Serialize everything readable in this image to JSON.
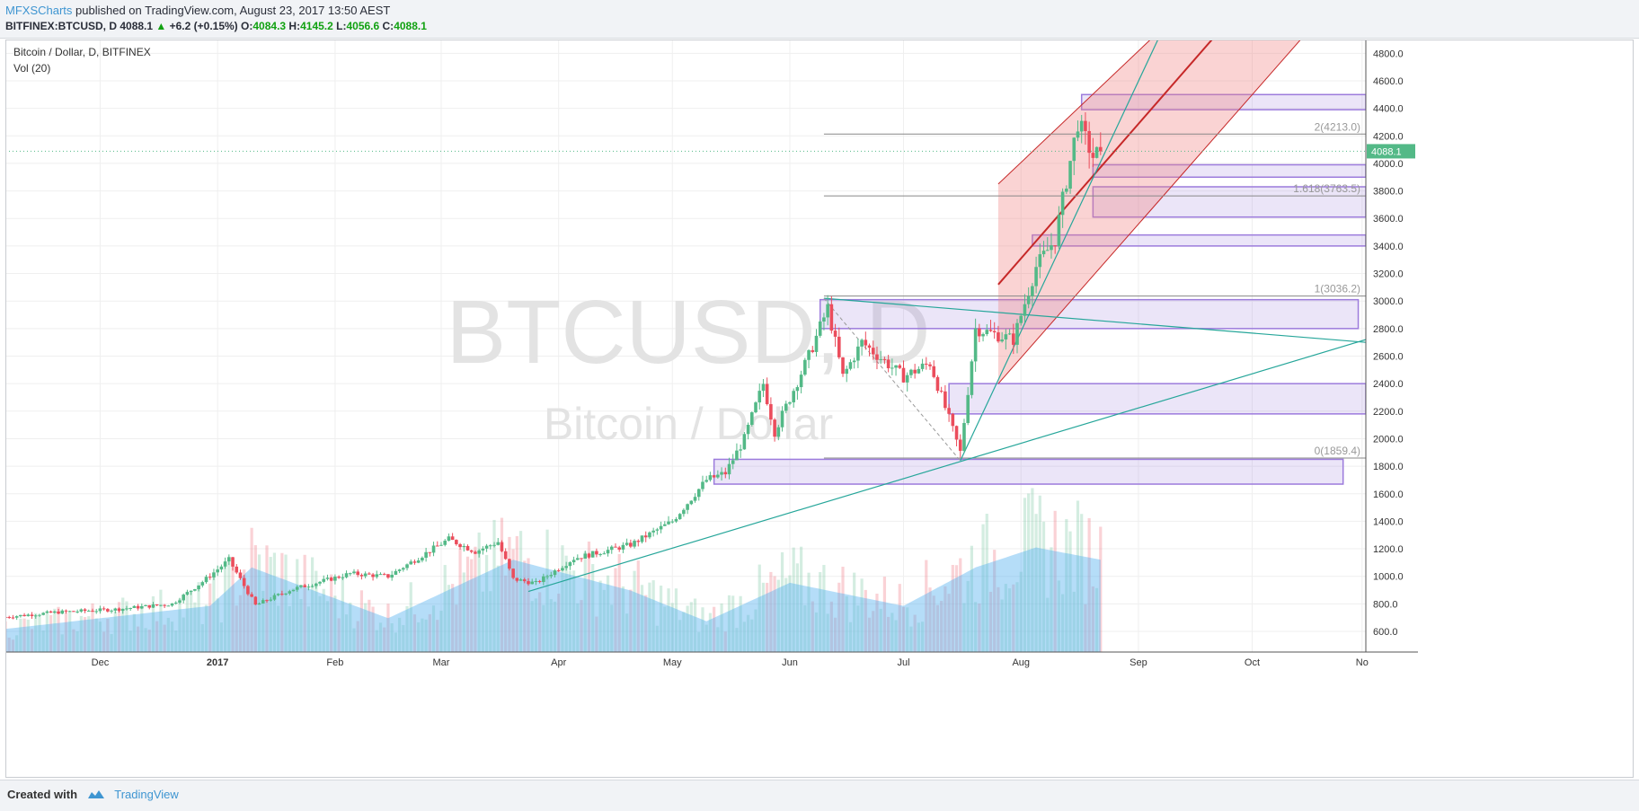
{
  "header": {
    "author": "MFXSCharts",
    "published_text": "published on TradingView.com, August 23, 2017 13:50 AEST",
    "symbol": "BITFINEX:BTCUSD, D",
    "last": "4088.1",
    "change": "+6.2 (+0.15%)",
    "open_label": "O:",
    "open": "4084.3",
    "high_label": "H:",
    "high": "4145.2",
    "low_label": "L:",
    "low": "4056.6",
    "close_label": "C:",
    "close": "4088.1"
  },
  "legend": {
    "title": "Bitcoin / Dollar, D, BITFINEX",
    "vol": "Vol (20)"
  },
  "watermark": {
    "big": "BTCUSD, D",
    "small": "Bitcoin / Dollar"
  },
  "footer": {
    "created_with": "Created with",
    "brand": "TradingView"
  },
  "colors": {
    "up": "#53b987",
    "down": "#eb4d5c",
    "vol_ma": "#5ab4f0",
    "zone": "#9c7bdc",
    "channel": "#f08080",
    "channel_line": "#c62828",
    "trend": "#26a69a",
    "grid": "#efefef",
    "price_tag": "#53b987"
  },
  "chart_data": {
    "type": "candlestick",
    "price_axis": {
      "min": 450,
      "max": 4900,
      "ticks": [
        600,
        800,
        1000,
        1200,
        1400,
        1600,
        1800,
        2000,
        2200,
        2400,
        2600,
        2800,
        3000,
        3200,
        3400,
        3600,
        3800,
        4000,
        4200,
        4400,
        4600,
        4800
      ]
    },
    "time_axis": {
      "start": "2016-11-06",
      "end": "2017-10-31",
      "ticks": [
        {
          "label": "Dec",
          "date": "2016-12-01"
        },
        {
          "label": "2017",
          "date": "2017-01-01",
          "bold": true
        },
        {
          "label": "Feb",
          "date": "2017-02-01"
        },
        {
          "label": "Mar",
          "date": "2017-03-01"
        },
        {
          "label": "Apr",
          "date": "2017-04-01"
        },
        {
          "label": "May",
          "date": "2017-05-01"
        },
        {
          "label": "Jun",
          "date": "2017-06-01"
        },
        {
          "label": "Jul",
          "date": "2017-07-01"
        },
        {
          "label": "Aug",
          "date": "2017-08-01"
        },
        {
          "label": "Sep",
          "date": "2017-09-01"
        },
        {
          "label": "Oct",
          "date": "2017-10-01"
        },
        {
          "label": "No",
          "date": "2017-10-30"
        }
      ]
    },
    "price_anchors": [
      [
        "2016-11-06",
        705
      ],
      [
        "2016-11-20",
        740
      ],
      [
        "2016-12-05",
        760
      ],
      [
        "2016-12-20",
        800
      ],
      [
        "2016-12-28",
        960
      ],
      [
        "2017-01-04",
        1120
      ],
      [
        "2017-01-11",
        790
      ],
      [
        "2017-01-20",
        900
      ],
      [
        "2017-02-05",
        1020
      ],
      [
        "2017-02-15",
        1000
      ],
      [
        "2017-03-03",
        1270
      ],
      [
        "2017-03-10",
        1180
      ],
      [
        "2017-03-16",
        1250
      ],
      [
        "2017-03-20",
        980
      ],
      [
        "2017-03-26",
        950
      ],
      [
        "2017-04-05",
        1130
      ],
      [
        "2017-04-20",
        1230
      ],
      [
        "2017-05-01",
        1400
      ],
      [
        "2017-05-10",
        1700
      ],
      [
        "2017-05-15",
        1750
      ],
      [
        "2017-05-20",
        2000
      ],
      [
        "2017-05-25",
        2400
      ],
      [
        "2017-05-28",
        2050
      ],
      [
        "2017-06-06",
        2600
      ],
      [
        "2017-06-11",
        2950
      ],
      [
        "2017-06-15",
        2450
      ],
      [
        "2017-06-20",
        2700
      ],
      [
        "2017-07-01",
        2450
      ],
      [
        "2017-07-08",
        2550
      ],
      [
        "2017-07-16",
        1900
      ],
      [
        "2017-07-20",
        2800
      ],
      [
        "2017-07-30",
        2720
      ],
      [
        "2017-08-05",
        3250
      ],
      [
        "2017-08-10",
        3450
      ],
      [
        "2017-08-16",
        4300
      ],
      [
        "2017-08-20",
        4050
      ],
      [
        "2017-08-22",
        4088.1
      ]
    ],
    "volume_anchors": [
      [
        "2016-11-06",
        15000
      ],
      [
        "2016-12-30",
        30000
      ],
      [
        "2017-01-10",
        55000
      ],
      [
        "2017-02-15",
        22000
      ],
      [
        "2017-03-20",
        60000
      ],
      [
        "2017-04-20",
        40000
      ],
      [
        "2017-05-10",
        20000
      ],
      [
        "2017-06-01",
        45000
      ],
      [
        "2017-07-01",
        30000
      ],
      [
        "2017-07-20",
        55000
      ],
      [
        "2017-08-05",
        68000
      ],
      [
        "2017-08-22",
        60000
      ]
    ],
    "zones": [
      {
        "from": "2017-08-17",
        "to": "2017-10-31",
        "low": 4390,
        "high": 4500
      },
      {
        "from": "2017-08-20",
        "to": "2017-10-31",
        "low": 3900,
        "high": 3990
      },
      {
        "from": "2017-08-20",
        "to": "2017-10-31",
        "low": 3610,
        "high": 3830
      },
      {
        "from": "2017-08-04",
        "to": "2017-10-31",
        "low": 3400,
        "high": 3480
      },
      {
        "from": "2017-06-09",
        "to": "2017-10-29",
        "low": 2800,
        "high": 3010
      },
      {
        "from": "2017-07-13",
        "to": "2017-10-31",
        "low": 2180,
        "high": 2400
      },
      {
        "from": "2017-05-12",
        "to": "2017-10-25",
        "low": 1670,
        "high": 1850
      }
    ],
    "fib_levels": [
      {
        "label": "2(4213.0)",
        "value": 4213.0
      },
      {
        "label": "1.618(3763.5)",
        "value": 3763.5
      },
      {
        "label": "1(3036.2)",
        "value": 3036.2
      },
      {
        "label": "0(1859.4)",
        "value": 1859.4
      }
    ],
    "fib_start": "2017-06-10",
    "channel": {
      "lower": [
        [
          "2017-07-26",
          2400
        ],
        [
          "2017-10-17",
          5000
        ]
      ],
      "upper": [
        [
          "2017-07-26",
          3850
        ],
        [
          "2017-09-08",
          5000
        ]
      ],
      "middle": [
        [
          "2017-07-26",
          3120
        ],
        [
          "2017-09-22",
          4950
        ]
      ]
    },
    "trendlines": [
      {
        "from": [
          "2017-03-24",
          890
        ],
        "to": [
          "2017-10-31",
          2720
        ]
      },
      {
        "from": [
          "2017-06-10",
          3020
        ],
        "to": [
          "2017-10-31",
          2700
        ]
      },
      {
        "from": [
          "2017-07-16",
          1840
        ],
        "to": [
          "2017-09-07",
          4950
        ]
      }
    ],
    "dashed": {
      "from": [
        "2017-06-10",
        3020
      ],
      "to": [
        "2017-07-16",
        1840
      ]
    },
    "last_price": 4088.1
  }
}
